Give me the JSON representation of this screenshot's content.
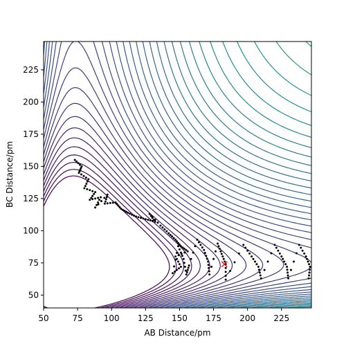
{
  "chart_data": {
    "type": "contour",
    "xlabel": "AB Distance/pm",
    "ylabel": "BC Distance/pm",
    "xlim": [
      50,
      247
    ],
    "ylim": [
      40,
      247
    ],
    "x_ticks": [
      50,
      75,
      100,
      125,
      150,
      175,
      200,
      225
    ],
    "y_ticks": [
      50,
      75,
      100,
      125,
      150,
      175,
      200,
      225
    ],
    "grid": false,
    "colormap": "viridis",
    "colormap_stops": [
      "#440154",
      "#3b528b",
      "#21918c",
      "#5ec962",
      "#fde725"
    ],
    "trajectory_color": "#000000",
    "marker_color": "#ff0000",
    "marker": {
      "shape": "x",
      "x": 183,
      "y": 74
    },
    "trajectory_waypoints": [
      [
        73,
        155
      ],
      [
        78,
        150
      ],
      [
        76,
        145
      ],
      [
        83,
        140
      ],
      [
        80,
        133
      ],
      [
        88,
        130
      ],
      [
        84,
        124
      ],
      [
        92,
        126
      ],
      [
        88,
        118
      ],
      [
        97,
        128
      ],
      [
        95,
        121
      ],
      [
        103,
        122
      ],
      [
        107,
        117
      ],
      [
        112,
        114
      ],
      [
        118,
        111
      ],
      [
        125,
        109
      ],
      [
        132,
        107
      ],
      [
        128,
        113
      ],
      [
        136,
        104
      ],
      [
        142,
        98
      ],
      [
        147,
        93
      ],
      [
        151,
        88
      ],
      [
        156,
        84
      ],
      [
        147,
        80
      ],
      [
        151,
        72
      ],
      [
        145,
        67
      ],
      [
        149,
        88
      ],
      [
        153,
        78
      ],
      [
        155,
        66
      ],
      [
        157,
        73
      ],
      [
        163,
        93
      ],
      [
        168,
        85
      ],
      [
        171,
        76
      ],
      [
        172,
        66
      ],
      [
        178,
        90
      ],
      [
        181,
        82
      ],
      [
        184,
        74
      ],
      [
        184,
        62
      ],
      [
        197,
        89
      ],
      [
        203,
        80
      ],
      [
        208,
        72
      ],
      [
        210,
        63
      ],
      [
        220,
        89
      ],
      [
        225,
        80
      ],
      [
        229,
        72
      ],
      [
        230,
        63
      ],
      [
        238,
        89
      ],
      [
        243,
        80
      ],
      [
        246,
        72
      ],
      [
        245,
        63
      ]
    ]
  }
}
